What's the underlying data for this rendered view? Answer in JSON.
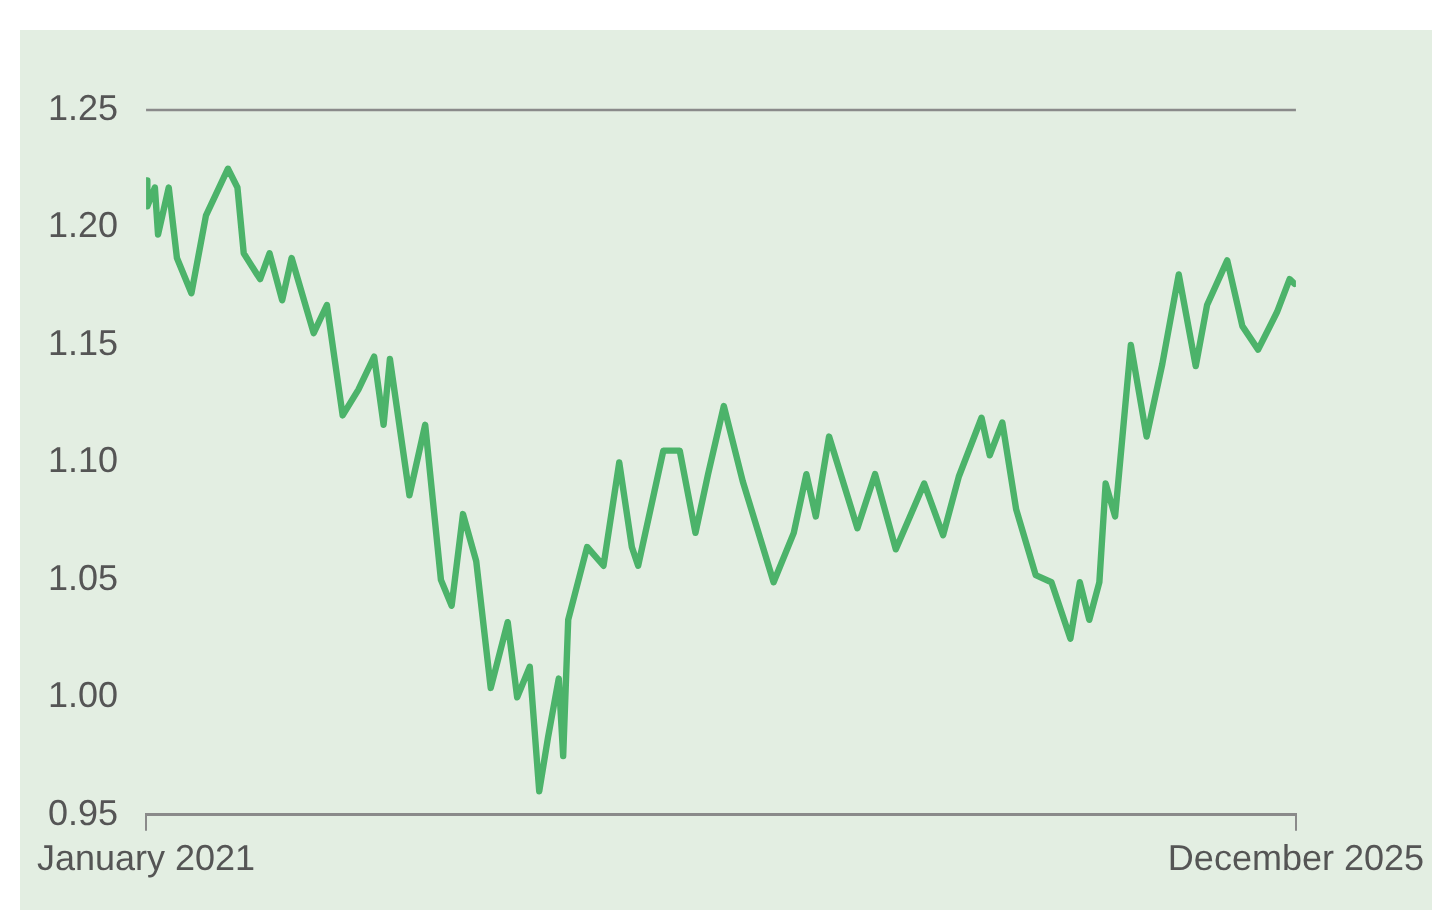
{
  "chart_data": {
    "type": "line",
    "x": [
      "2021-01-01",
      "2021-01-03",
      "2021-01-15",
      "2021-01-20",
      "2021-02-06",
      "2021-02-19",
      "2021-03-14",
      "2021-04-06",
      "2021-05-11",
      "2021-05-26",
      "2021-06-05",
      "2021-07-01",
      "2021-07-16",
      "2021-08-05",
      "2021-08-20",
      "2021-09-24",
      "2021-10-15",
      "2021-11-09",
      "2021-12-04",
      "2021-12-29",
      "2022-01-13",
      "2022-01-23",
      "2022-02-23",
      "2022-03-20",
      "2022-04-14",
      "2022-05-01",
      "2022-05-19",
      "2022-06-09",
      "2022-07-02",
      "2022-07-29",
      "2022-08-13",
      "2022-09-02",
      "2022-09-17",
      "2022-10-01",
      "2022-10-18",
      "2022-10-25",
      "2022-11-02",
      "2022-12-02",
      "2022-12-28",
      "2023-01-22",
      "2023-02-11",
      "2023-02-21",
      "2023-04-02",
      "2023-04-28",
      "2023-05-23",
      "2023-06-12",
      "2023-07-07",
      "2023-08-06",
      "2023-09-24",
      "2023-10-26",
      "2023-11-15",
      "2023-11-30",
      "2023-12-21",
      "2024-02-04",
      "2024-03-03",
      "2024-04-05",
      "2024-05-20",
      "2024-06-19",
      "2024-07-14",
      "2024-08-19",
      "2024-09-01",
      "2024-09-21",
      "2024-10-13",
      "2024-11-13",
      "2024-12-08",
      "2025-01-07",
      "2025-01-22",
      "2025-02-06",
      "2025-02-22",
      "2025-03-04",
      "2025-03-19",
      "2025-04-13",
      "2025-05-08",
      "2025-06-02",
      "2025-06-28",
      "2025-07-25",
      "2025-08-12",
      "2025-09-13",
      "2025-10-07",
      "2025-11-01",
      "2025-12-01",
      "2025-12-21",
      "2025-12-29"
    ],
    "series": [
      {
        "color": "#4cb36a",
        "values": [
          1.22,
          1.209,
          1.217,
          1.197,
          1.217,
          1.187,
          1.172,
          1.205,
          1.225,
          1.217,
          1.189,
          1.178,
          1.189,
          1.169,
          1.187,
          1.155,
          1.167,
          1.12,
          1.131,
          1.145,
          1.116,
          1.144,
          1.086,
          1.116,
          1.05,
          1.039,
          1.078,
          1.058,
          1.004,
          1.032,
          1.0,
          1.013,
          0.96,
          0.983,
          1.008,
          0.975,
          1.033,
          1.064,
          1.056,
          1.1,
          1.064,
          1.056,
          1.105,
          1.105,
          1.07,
          1.095,
          1.124,
          1.092,
          1.049,
          1.07,
          1.095,
          1.077,
          1.111,
          1.072,
          1.095,
          1.063,
          1.091,
          1.069,
          1.094,
          1.119,
          1.103,
          1.117,
          1.08,
          1.052,
          1.049,
          1.025,
          1.049,
          1.033,
          1.049,
          1.091,
          1.077,
          1.15,
          1.111,
          1.142,
          1.18,
          1.141,
          1.167,
          1.186,
          1.158,
          1.148,
          1.164,
          1.178,
          1.176
        ]
      }
    ],
    "xlim": [
      "2021-01-01",
      "2025-12-31"
    ],
    "xticks": [
      {
        "value": "2021-01-01",
        "label": "January 2021"
      },
      {
        "value": "2025-12-31",
        "label": "December 2025"
      }
    ],
    "ylim": [
      0.95,
      1.25
    ],
    "yticks": [
      {
        "value": 0.95,
        "label": "0.95"
      },
      {
        "value": 1.0,
        "label": "1.00"
      },
      {
        "value": 1.05,
        "label": "1.05"
      },
      {
        "value": 1.1,
        "label": "1.10"
      },
      {
        "value": 1.15,
        "label": "1.15"
      },
      {
        "value": 1.2,
        "label": "1.20"
      },
      {
        "value": 1.25,
        "label": "1.25"
      }
    ],
    "legend": false,
    "marker": "none",
    "line_style": "solid"
  }
}
